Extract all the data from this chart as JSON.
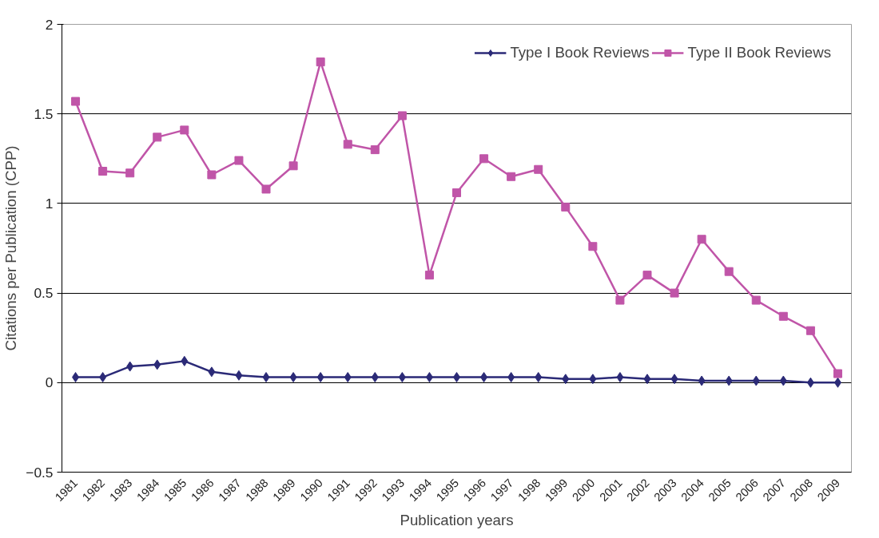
{
  "chart_data": {
    "type": "line",
    "xlabel": "Publication years",
    "ylabel": "Citations per Publication (CPP)",
    "categories": [
      "1981",
      "1982",
      "1983",
      "1984",
      "1985",
      "1986",
      "1987",
      "1988",
      "1989",
      "1990",
      "1991",
      "1992",
      "1993",
      "1994",
      "1995",
      "1996",
      "1997",
      "1998",
      "1999",
      "2000",
      "2001",
      "2002",
      "2003",
      "2004",
      "2005",
      "2006",
      "2007",
      "2008",
      "2009"
    ],
    "series": [
      {
        "name": "Type I Book Reviews",
        "color": "#2b2a77",
        "marker": "diamond",
        "values": [
          0.03,
          0.03,
          0.09,
          0.1,
          0.12,
          0.06,
          0.04,
          0.03,
          0.03,
          0.03,
          0.03,
          0.03,
          0.03,
          0.03,
          0.03,
          0.03,
          0.03,
          0.03,
          0.02,
          0.02,
          0.03,
          0.02,
          0.02,
          0.01,
          0.01,
          0.01,
          0.01,
          0.0,
          0.0
        ]
      },
      {
        "name": "Type II Book Reviews",
        "color": "#c055a8",
        "marker": "square",
        "values": [
          1.57,
          1.18,
          1.17,
          1.37,
          1.41,
          1.16,
          1.24,
          1.08,
          1.21,
          1.79,
          1.33,
          1.3,
          1.49,
          0.6,
          1.06,
          1.25,
          1.15,
          1.19,
          0.98,
          0.76,
          0.46,
          0.6,
          0.5,
          0.8,
          0.62,
          0.46,
          0.37,
          0.29,
          0.05
        ]
      }
    ],
    "ylim": [
      -0.5,
      2
    ],
    "yticks": [
      -0.5,
      0,
      0.5,
      1,
      1.5,
      2
    ],
    "grid": "y",
    "legend": "top right",
    "line_style": "solid"
  }
}
